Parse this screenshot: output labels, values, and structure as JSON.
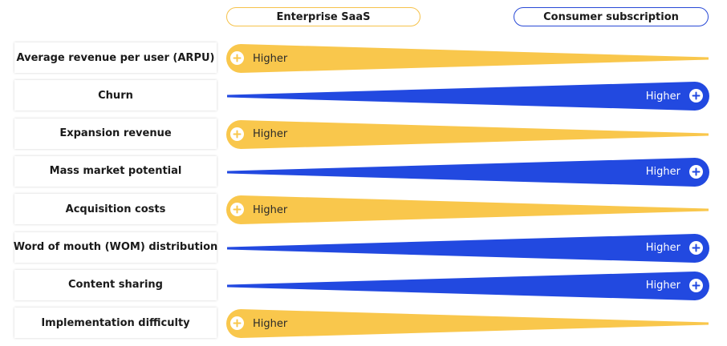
{
  "header": {
    "left_label": "Enterprise SaaS",
    "right_label": "Consumer subscription"
  },
  "colors": {
    "enterprise": "#f9c74c",
    "consumer": "#2249e0"
  },
  "rows": [
    {
      "label": "Average revenue per user (ARPU)",
      "side": "enterprise",
      "value_label": "Higher"
    },
    {
      "label": "Churn",
      "side": "consumer",
      "value_label": "Higher"
    },
    {
      "label": "Expansion revenue",
      "side": "enterprise",
      "value_label": "Higher"
    },
    {
      "label": "Mass market potential",
      "side": "consumer",
      "value_label": "Higher"
    },
    {
      "label": "Acquisition costs",
      "side": "enterprise",
      "value_label": "Higher"
    },
    {
      "label": "Word of mouth (WOM) distribution",
      "side": "consumer",
      "value_label": "Higher"
    },
    {
      "label": "Content sharing",
      "side": "consumer",
      "value_label": "Higher"
    },
    {
      "label": "Implementation difficulty",
      "side": "enterprise",
      "value_label": "Higher"
    }
  ]
}
